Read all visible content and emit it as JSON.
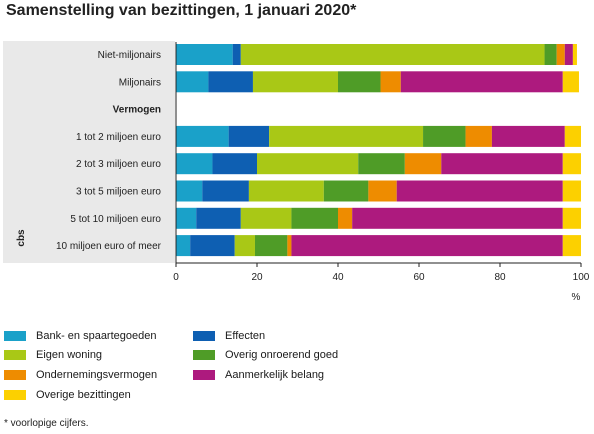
{
  "title": "Samenstelling van bezittingen, 1 januari 2020*",
  "footnote": "* voorlopige cijfers.",
  "logo_text": "cbs",
  "chart_data": {
    "type": "bar",
    "orientation": "horizontal",
    "stacked": true,
    "title": "Samenstelling van bezittingen, 1 januari 2020*",
    "xlabel": "%",
    "xlim": [
      0,
      100
    ],
    "xticks": [
      "0",
      "20",
      "40",
      "60",
      "80",
      "100"
    ],
    "grid": false,
    "legend_position": "bottom",
    "rows": [
      {
        "label": "Niet-miljonairs",
        "header": false,
        "values": [
          14,
          2,
          75,
          3,
          2,
          2,
          1
        ]
      },
      {
        "label": "Miljonairs",
        "header": false,
        "values": [
          8,
          11,
          21,
          10.5,
          5,
          40,
          4
        ]
      },
      {
        "label": "Vermogen",
        "header": true,
        "values": []
      },
      {
        "label": "1 tot 2 miljoen euro",
        "header": false,
        "values": [
          13,
          10,
          38,
          10.5,
          6.5,
          18,
          4
        ]
      },
      {
        "label": "2 tot 3 miljoen euro",
        "header": false,
        "values": [
          9,
          11,
          25,
          11.5,
          9,
          30,
          4.5
        ]
      },
      {
        "label": "3 tot 5 miljoen euro",
        "header": false,
        "values": [
          6.5,
          11.5,
          18.5,
          11,
          7,
          41,
          4.5
        ]
      },
      {
        "label": "5 tot 10 miljoen euro",
        "header": false,
        "values": [
          5,
          11,
          12.5,
          11.5,
          3.5,
          52,
          4.5
        ]
      },
      {
        "label": "10 miljoen euro of meer",
        "header": false,
        "values": [
          3.5,
          11,
          5,
          8,
          1,
          67,
          4.5
        ]
      }
    ],
    "series": [
      {
        "name": "Bank- en spaartegoeden",
        "color": "#1aa1c9"
      },
      {
        "name": "Effecten",
        "color": "#0e5fb2"
      },
      {
        "name": "Eigen woning",
        "color": "#a9c816"
      },
      {
        "name": "Overig onroerend goed",
        "color": "#4f9c27"
      },
      {
        "name": "Ondernemingsvermogen",
        "color": "#ee8c00"
      },
      {
        "name": "Aanmerkelijk belang",
        "color": "#ad1a7e"
      },
      {
        "name": "Overige bezittingen",
        "color": "#fcd000"
      }
    ]
  }
}
